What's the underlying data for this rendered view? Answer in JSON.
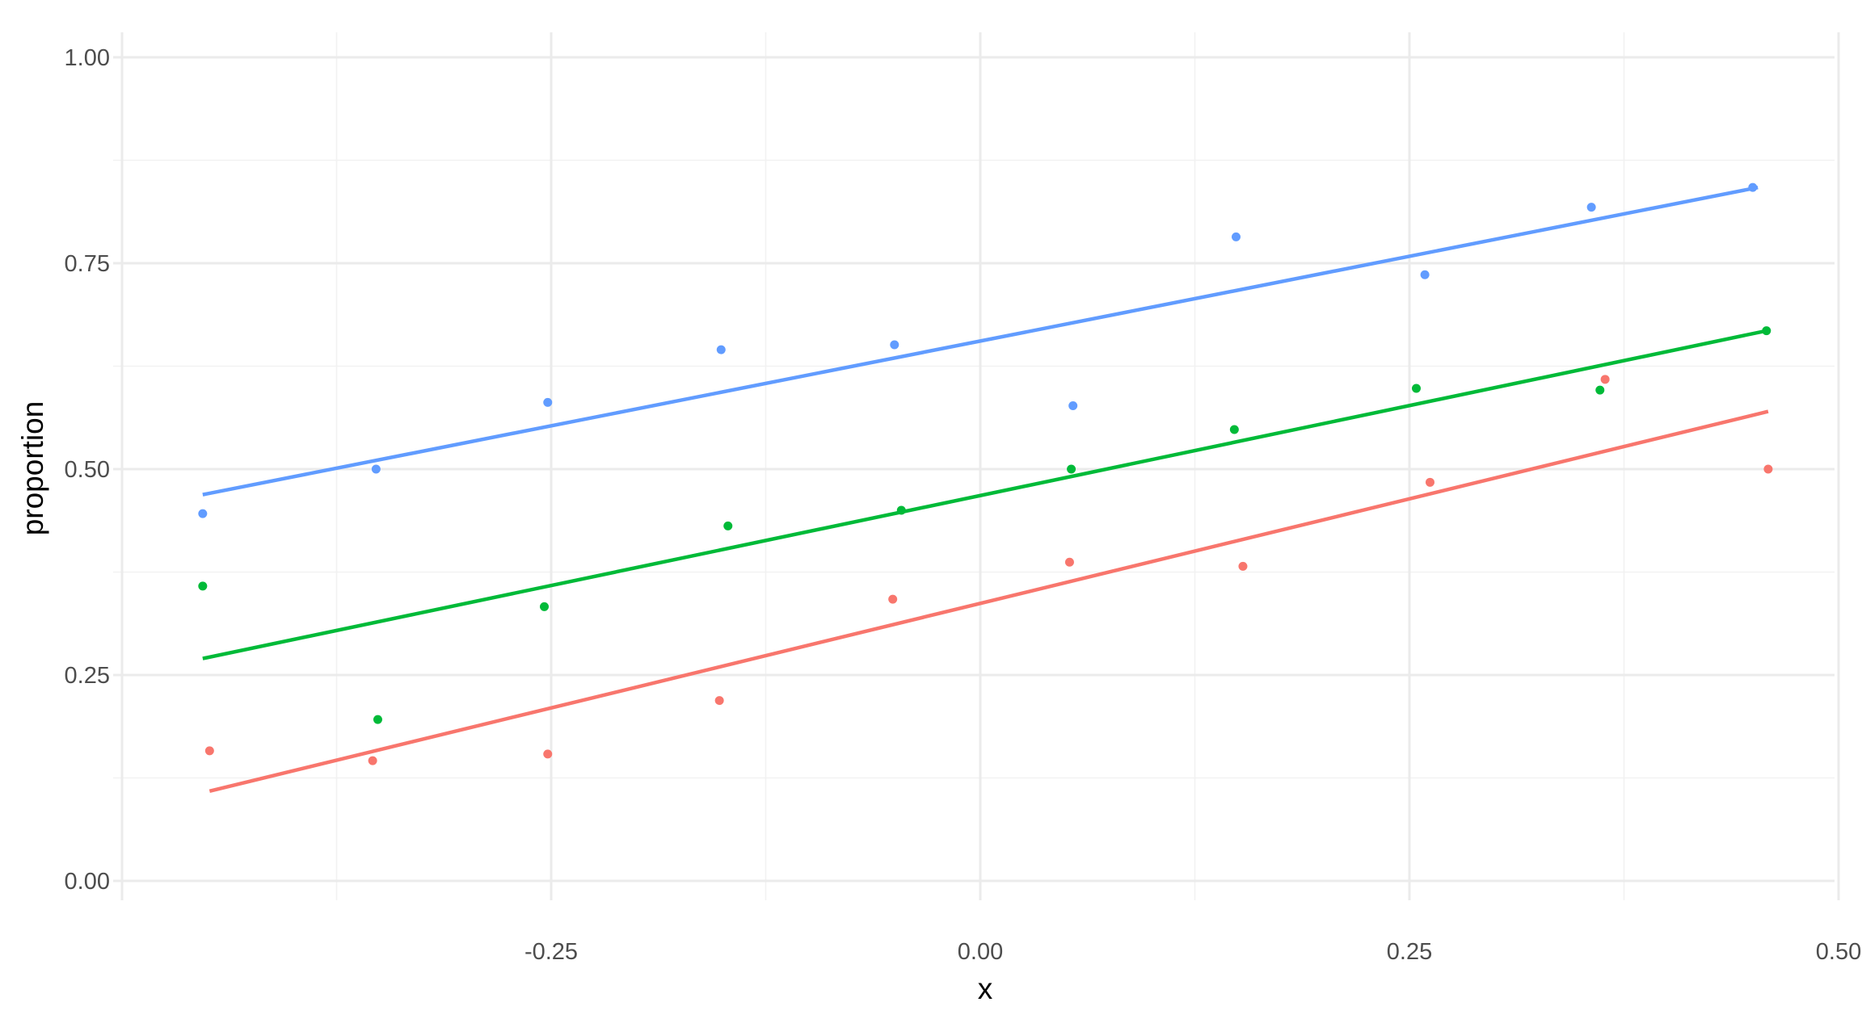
{
  "chart_data": {
    "type": "scatter",
    "xlabel": "x",
    "ylabel": "proportion",
    "xlim": [
      -0.5,
      0.5
    ],
    "ylim": [
      0.0,
      1.0
    ],
    "x_ticks": [
      -0.25,
      0.0,
      0.25,
      0.5
    ],
    "x_tick_labels": [
      "-0.25",
      "0.00",
      "0.25",
      "0.50"
    ],
    "y_ticks": [
      0.0,
      0.25,
      0.5,
      0.75,
      1.0
    ],
    "y_tick_labels": [
      "0.00",
      "0.25",
      "0.50",
      "0.75",
      "1.00"
    ],
    "grid": true,
    "legend": "none",
    "series": [
      {
        "color": "#619CFF",
        "points": [
          {
            "x": -0.453,
            "y": 0.446
          },
          {
            "x": -0.352,
            "y": 0.5
          },
          {
            "x": -0.252,
            "y": 0.581
          },
          {
            "x": -0.151,
            "y": 0.645
          },
          {
            "x": -0.05,
            "y": 0.651
          },
          {
            "x": 0.054,
            "y": 0.577
          },
          {
            "x": 0.149,
            "y": 0.782
          },
          {
            "x": 0.259,
            "y": 0.736
          },
          {
            "x": 0.356,
            "y": 0.818
          },
          {
            "x": 0.45,
            "y": 0.842
          }
        ],
        "fit": [
          {
            "x": -0.453,
            "y": 0.469
          },
          {
            "x": 0.453,
            "y": 0.842
          }
        ]
      },
      {
        "color": "#00BA38",
        "points": [
          {
            "x": -0.453,
            "y": 0.358
          },
          {
            "x": -0.351,
            "y": 0.196
          },
          {
            "x": -0.254,
            "y": 0.333
          },
          {
            "x": -0.147,
            "y": 0.431
          },
          {
            "x": -0.046,
            "y": 0.45
          },
          {
            "x": 0.053,
            "y": 0.5
          },
          {
            "x": 0.148,
            "y": 0.548
          },
          {
            "x": 0.254,
            "y": 0.598
          },
          {
            "x": 0.361,
            "y": 0.596
          },
          {
            "x": 0.458,
            "y": 0.668
          }
        ],
        "fit": [
          {
            "x": -0.453,
            "y": 0.27
          },
          {
            "x": 0.458,
            "y": 0.668
          }
        ]
      },
      {
        "color": "#F8766D",
        "points": [
          {
            "x": -0.449,
            "y": 0.158
          },
          {
            "x": -0.354,
            "y": 0.146
          },
          {
            "x": -0.252,
            "y": 0.154
          },
          {
            "x": -0.152,
            "y": 0.219
          },
          {
            "x": -0.051,
            "y": 0.342
          },
          {
            "x": 0.052,
            "y": 0.387
          },
          {
            "x": 0.153,
            "y": 0.382
          },
          {
            "x": 0.262,
            "y": 0.484
          },
          {
            "x": 0.364,
            "y": 0.609
          },
          {
            "x": 0.459,
            "y": 0.5
          }
        ],
        "fit": [
          {
            "x": -0.449,
            "y": 0.109
          },
          {
            "x": 0.459,
            "y": 0.57
          }
        ]
      }
    ]
  }
}
